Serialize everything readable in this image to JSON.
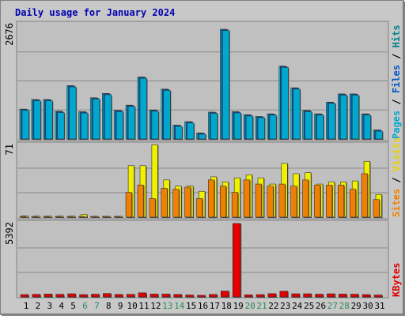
{
  "title": "Daily usage for January 2024",
  "colors": {
    "page_bg": "#ffffff",
    "frame_bg": "#c8c8c8",
    "plot_bg": "#c0c0c0",
    "title": "#0000b0",
    "grid": "#8a8a8a",
    "weekend": "#2e8b57",
    "weekday": "#000000",
    "hits": "#00c8e0",
    "files": "#0058c8",
    "pages": "#00a8d0",
    "visits": "#f0f000",
    "sites": "#f08000",
    "kbytes": "#e00000"
  },
  "chart_data": [
    {
      "type": "bar",
      "panel": "hits-files-pages",
      "ymax_label": "2676",
      "ylim": [
        0,
        2676
      ],
      "legend": [
        "Pages",
        "Files",
        "Hits"
      ],
      "categories": [
        "1",
        "2",
        "3",
        "4",
        "5",
        "6",
        "7",
        "8",
        "9",
        "10",
        "11",
        "12",
        "13",
        "14",
        "15",
        "16",
        "17",
        "18",
        "19",
        "20",
        "21",
        "22",
        "23",
        "24",
        "25",
        "26",
        "27",
        "28",
        "29",
        "30",
        "31"
      ],
      "weekend_days": [
        "6",
        "7",
        "13",
        "14",
        "20",
        "21",
        "27",
        "28"
      ],
      "series": [
        {
          "name": "Hits",
          "values": [
            690,
            910,
            910,
            640,
            1230,
            630,
            950,
            1050,
            660,
            780,
            1430,
            670,
            1150,
            320,
            400,
            140,
            620,
            2530,
            630,
            560,
            520,
            580,
            1680,
            1180,
            660,
            580,
            850,
            1040,
            1040,
            580,
            210
          ]
        },
        {
          "name": "Files",
          "values": [
            680,
            900,
            900,
            630,
            1220,
            620,
            940,
            1040,
            650,
            770,
            1420,
            660,
            1140,
            310,
            390,
            130,
            610,
            2520,
            620,
            550,
            510,
            570,
            1670,
            1170,
            650,
            570,
            840,
            1030,
            1030,
            570,
            200
          ]
        },
        {
          "name": "Pages",
          "values": [
            660,
            880,
            880,
            610,
            1200,
            600,
            920,
            1020,
            630,
            750,
            1400,
            640,
            1120,
            290,
            370,
            110,
            590,
            2500,
            600,
            530,
            490,
            550,
            1650,
            1150,
            630,
            550,
            820,
            1010,
            1010,
            550,
            180
          ]
        }
      ]
    },
    {
      "type": "bar",
      "panel": "visits-sites",
      "ymax_label": "71",
      "ylim": [
        0,
        71
      ],
      "legend": [
        "Sites",
        "Visits"
      ],
      "categories": [
        "1",
        "2",
        "3",
        "4",
        "5",
        "6",
        "7",
        "8",
        "9",
        "10",
        "11",
        "12",
        "13",
        "14",
        "15",
        "16",
        "17",
        "18",
        "19",
        "20",
        "21",
        "22",
        "23",
        "24",
        "25",
        "26",
        "27",
        "28",
        "29",
        "30",
        "31"
      ],
      "series": [
        {
          "name": "Visits",
          "values": [
            1.3,
            1,
            1,
            1,
            1,
            2.6,
            0.8,
            0.8,
            0.8,
            49.8,
            49.8,
            70,
            36,
            30,
            30,
            25,
            39,
            34,
            38,
            41,
            38,
            32,
            52,
            42,
            43,
            32,
            34,
            34,
            35,
            54,
            22
          ]
        },
        {
          "name": "Sites",
          "values": [
            0.8,
            0.7,
            0.7,
            0.7,
            0.7,
            0.8,
            0.7,
            0.7,
            0.7,
            24,
            31,
            18,
            28,
            27,
            29,
            18,
            36,
            30,
            24,
            36,
            32,
            30,
            32,
            30,
            36,
            31,
            31,
            31,
            27,
            42,
            17
          ]
        }
      ]
    },
    {
      "type": "bar",
      "panel": "kbytes",
      "ymax_label": "5392",
      "ylim": [
        0,
        5392
      ],
      "legend": [
        "KBytes"
      ],
      "categories": [
        "1",
        "2",
        "3",
        "4",
        "5",
        "6",
        "7",
        "8",
        "9",
        "10",
        "11",
        "12",
        "13",
        "14",
        "15",
        "16",
        "17",
        "18",
        "19",
        "20",
        "21",
        "22",
        "23",
        "24",
        "25",
        "26",
        "27",
        "28",
        "29",
        "30",
        "31"
      ],
      "series": [
        {
          "name": "KBytes",
          "values": [
            170,
            190,
            210,
            190,
            230,
            170,
            200,
            250,
            180,
            190,
            300,
            210,
            210,
            180,
            140,
            120,
            180,
            430,
            5392,
            150,
            170,
            240,
            420,
            230,
            230,
            200,
            230,
            210,
            200,
            170,
            140
          ]
        }
      ]
    }
  ]
}
